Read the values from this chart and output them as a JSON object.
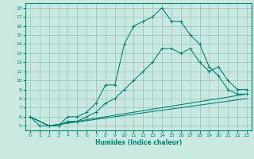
{
  "xlabel": "Humidex (Indice chaleur)",
  "bg_color": "#c8e8e0",
  "grid_color": "#a0c8c0",
  "line_color": "#008878",
  "xlim": [
    -0.5,
    23.5
  ],
  "ylim": [
    4.5,
    18.5
  ],
  "xticks": [
    0,
    1,
    2,
    3,
    4,
    5,
    6,
    7,
    8,
    9,
    10,
    11,
    12,
    13,
    14,
    15,
    16,
    17,
    18,
    19,
    20,
    21,
    22,
    23
  ],
  "yticks": [
    5,
    6,
    7,
    8,
    9,
    10,
    11,
    12,
    13,
    14,
    15,
    16,
    17,
    18
  ],
  "line1_x": [
    0,
    1,
    2,
    3,
    4,
    5,
    6,
    7,
    8,
    9,
    10,
    11,
    12,
    13,
    14,
    15,
    16,
    17,
    18,
    19,
    20,
    21,
    22,
    23
  ],
  "line1_y": [
    6,
    5,
    5,
    5,
    6,
    6,
    6.5,
    7.5,
    9.5,
    9.5,
    14,
    16,
    16.5,
    17,
    18,
    16.5,
    16.5,
    15,
    14,
    11.5,
    10.5,
    9,
    8.5,
    8.5
  ],
  "line2_x": [
    0,
    2,
    3,
    4,
    5,
    6,
    7,
    8,
    9,
    10,
    11,
    12,
    13,
    14,
    15,
    16,
    17,
    18,
    19,
    20,
    21,
    22,
    23
  ],
  "line2_y": [
    6,
    5,
    5,
    5.5,
    5.5,
    6,
    6.5,
    7.5,
    8,
    9,
    10,
    11,
    12,
    13.5,
    13.5,
    13,
    13.5,
    12,
    11,
    11.5,
    10,
    9,
    9
  ],
  "line3_x": [
    0,
    2,
    23
  ],
  "line3_y": [
    6,
    5,
    8.5
  ],
  "line4_x": [
    0,
    2,
    23
  ],
  "line4_y": [
    6,
    5,
    8
  ]
}
